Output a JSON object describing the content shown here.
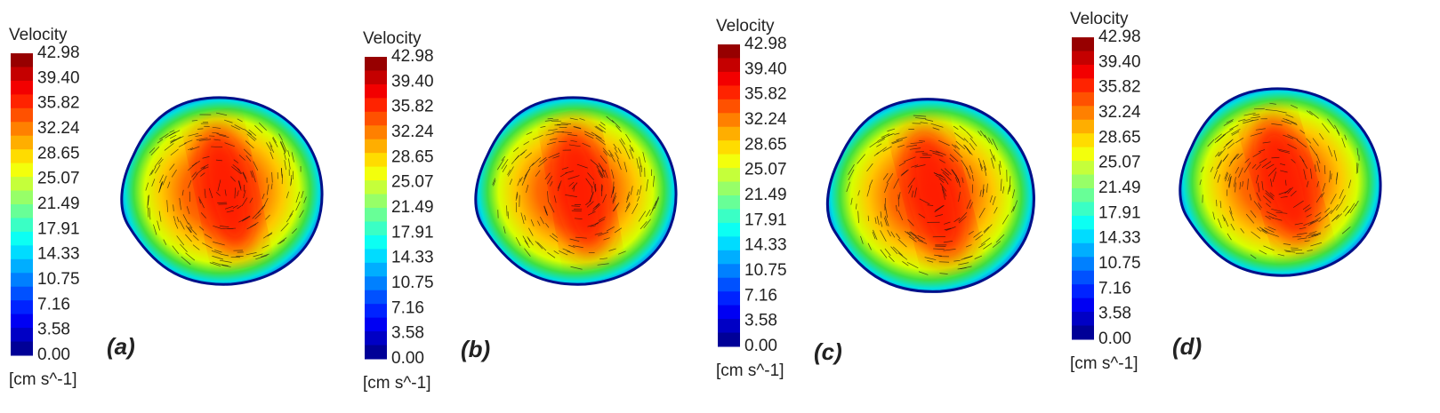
{
  "legend": {
    "title": "Velocity",
    "ticks": [
      "42.98",
      "39.40",
      "35.82",
      "32.24",
      "28.65",
      "25.07",
      "21.49",
      "17.91",
      "14.33",
      "10.75",
      "7.16",
      "3.58",
      "0.00"
    ],
    "unit": "[cm s^-1]"
  },
  "panels": [
    {
      "label": "(a)"
    },
    {
      "label": "(b)"
    },
    {
      "label": "(c)"
    },
    {
      "label": "(d)"
    }
  ]
}
